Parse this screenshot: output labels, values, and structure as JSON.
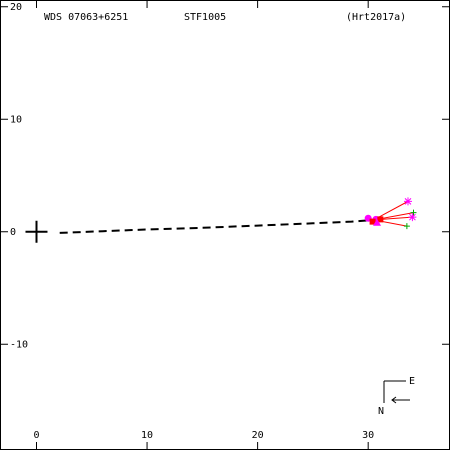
{
  "header": {
    "wds_id": "WDS 07063+6251",
    "discoverer": "STF1005",
    "reference": "(Hrt2017a)"
  },
  "compass": {
    "east_label": "E",
    "north_label": "N"
  },
  "chart_data": {
    "type": "scatter",
    "title": "",
    "xlabel": "",
    "ylabel": "",
    "xlim": [
      -3.3,
      37.4
    ],
    "ylim": [
      -19.4,
      20.6
    ],
    "xticks": [
      0,
      10,
      20,
      30
    ],
    "yticks": [
      -10,
      0,
      10,
      20
    ],
    "xtick_labels": [
      "0",
      "10",
      "20",
      "30"
    ],
    "ytick_labels": [
      "-10",
      "0",
      "10",
      "20"
    ],
    "primary_marker": {
      "x": 0,
      "y": 0,
      "symbol": "plus",
      "color": "#000000"
    },
    "orbit_path": {
      "style": "dashed",
      "color": "#000000",
      "points": [
        [
          2.1,
          -0.1
        ],
        [
          6,
          0.05
        ],
        [
          10,
          0.2
        ],
        [
          15,
          0.35
        ],
        [
          20,
          0.55
        ],
        [
          25,
          0.75
        ],
        [
          28.5,
          0.9
        ],
        [
          30.5,
          1.05
        ]
      ]
    },
    "observations": [
      {
        "x": 30.0,
        "y": 1.2,
        "symbol": "circle",
        "color": "#ff00ff"
      },
      {
        "x": 30.7,
        "y": 1.1,
        "symbol": "circle",
        "color": "#ff00ff"
      },
      {
        "x": 30.4,
        "y": 0.9,
        "symbol": "square",
        "color": "#ff0000"
      },
      {
        "x": 31.1,
        "y": 1.1,
        "symbol": "square",
        "color": "#ff0000"
      },
      {
        "x": 30.8,
        "y": 0.8,
        "symbol": "triangle",
        "color": "#ff00ff"
      },
      {
        "x": 33.6,
        "y": 2.7,
        "symbol": "asterisk",
        "color": "#ff00ff"
      },
      {
        "x": 33.5,
        "y": 0.5,
        "symbol": "plus",
        "color": "#00aa00"
      },
      {
        "x": 34.1,
        "y": 1.7,
        "symbol": "plus",
        "color": "#00aa00"
      },
      {
        "x": 34.0,
        "y": 1.3,
        "symbol": "asterisk",
        "color": "#ff00ff"
      }
    ],
    "residual_color": "#ff0000"
  }
}
